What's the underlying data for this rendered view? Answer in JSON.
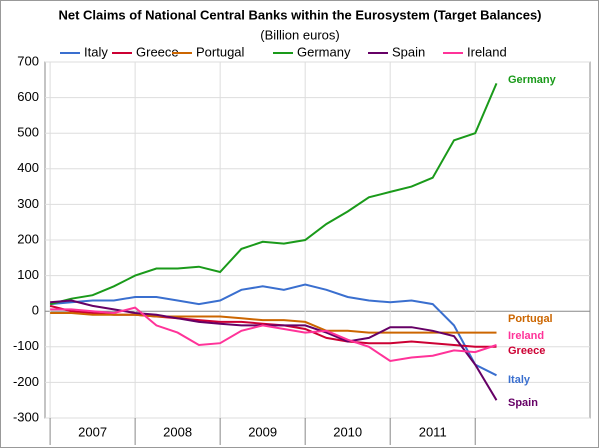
{
  "chart_data": {
    "type": "line",
    "title": "Net Claims of National Central Banks within the Eurosystem (Target Balances)",
    "subtitle": "(Billion euros)",
    "x": [
      2007.0,
      2007.25,
      2007.5,
      2007.75,
      2008.0,
      2008.25,
      2008.5,
      2008.75,
      2009.0,
      2009.25,
      2009.5,
      2009.75,
      2010.0,
      2010.25,
      2010.5,
      2010.75,
      2011.0,
      2011.25,
      2011.5,
      2011.75,
      2012.0,
      2012.25
    ],
    "series": [
      {
        "name": "Italy",
        "color": "#3a6fcf",
        "values": [
          20,
          25,
          30,
          30,
          40,
          40,
          30,
          20,
          30,
          60,
          70,
          60,
          75,
          60,
          40,
          30,
          25,
          30,
          20,
          -40,
          -150,
          -180
        ]
      },
      {
        "name": "Greece",
        "color": "#cc0033",
        "values": [
          15,
          0,
          -5,
          -10,
          -10,
          -15,
          -20,
          -25,
          -30,
          -30,
          -35,
          -40,
          -50,
          -75,
          -85,
          -90,
          -90,
          -85,
          -90,
          -95,
          -100,
          -100
        ]
      },
      {
        "name": "Portugal",
        "color": "#cc6600",
        "values": [
          -5,
          -5,
          -10,
          -10,
          -10,
          -15,
          -15,
          -15,
          -15,
          -20,
          -25,
          -25,
          -30,
          -55,
          -55,
          -60,
          -60,
          -60,
          -60,
          -60,
          -60,
          -60
        ]
      },
      {
        "name": "Germany",
        "color": "#1a9a1a",
        "values": [
          20,
          35,
          45,
          70,
          100,
          120,
          120,
          125,
          110,
          175,
          195,
          190,
          200,
          245,
          280,
          320,
          335,
          350,
          375,
          480,
          500,
          640
        ]
      },
      {
        "name": "Spain",
        "color": "#660066",
        "values": [
          25,
          30,
          15,
          5,
          -5,
          -10,
          -20,
          -30,
          -35,
          -40,
          -40,
          -40,
          -40,
          -60,
          -85,
          -75,
          -45,
          -45,
          -55,
          -70,
          -150,
          -250
        ]
      },
      {
        "name": "Ireland",
        "color": "#ff3399",
        "values": [
          5,
          5,
          0,
          -5,
          10,
          -40,
          -60,
          -95,
          -90,
          -55,
          -40,
          -50,
          -60,
          -55,
          -80,
          -100,
          -140,
          -130,
          -125,
          -110,
          -115,
          -95
        ]
      }
    ],
    "xlim": [
      2006.94,
      2013.35
    ],
    "xticks": [
      {
        "value": 2007,
        "label": "2007"
      },
      {
        "value": 2008,
        "label": "2008"
      },
      {
        "value": 2009,
        "label": "2009"
      },
      {
        "value": 2010,
        "label": "2010"
      },
      {
        "value": 2011,
        "label": "2011"
      }
    ],
    "ylim": [
      -300,
      700
    ],
    "yticks": [
      -300,
      -200,
      -100,
      0,
      100,
      200,
      300,
      400,
      500,
      600,
      700
    ],
    "grid": true
  }
}
